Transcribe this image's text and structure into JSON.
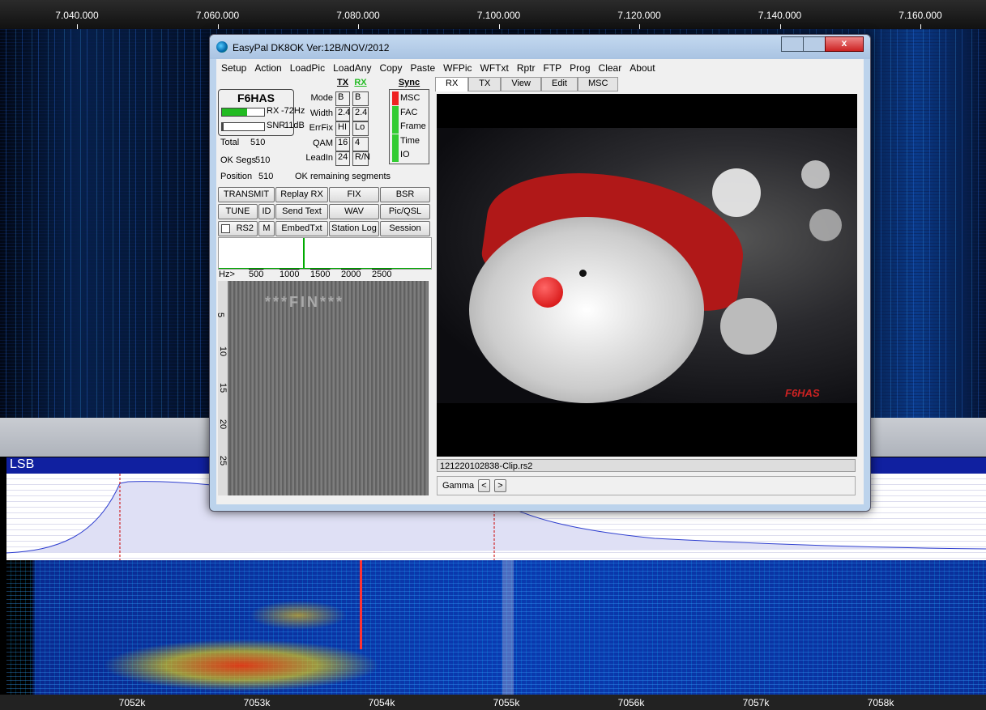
{
  "top_scale": [
    "7.040.000",
    "7.060.000",
    "7.080.000",
    "7.100.000",
    "7.120.000",
    "7.140.000",
    "7.160.000"
  ],
  "window": {
    "title": "EasyPal  DK8OK  Ver:12B/NOV/2012",
    "menu": [
      "Setup",
      "Action",
      "LoadPic",
      "LoadAny",
      "Copy",
      "Paste",
      "WFPic",
      "WFTxt",
      "Rptr",
      "FTP",
      "Prog",
      "Clear",
      "About"
    ],
    "status": {
      "callsign": "F6HAS",
      "rx": "RX",
      "rx_offset": "-72Hz",
      "snr_label": "SNR",
      "snr": "11dB",
      "total_label": "Total",
      "total": "510",
      "ok_segs_label": "OK Segs",
      "ok_segs": "510",
      "position_label": "Position",
      "position": "510",
      "remaining": "OK remaining segments"
    },
    "params": {
      "headers": [
        "TX",
        "RX",
        "Sync"
      ],
      "rows": [
        [
          "Mode",
          "B",
          "B"
        ],
        [
          "Width",
          "2.4",
          "2.4"
        ],
        [
          "ErrFix",
          "HI",
          "Lo"
        ],
        [
          "QAM",
          "16",
          "4"
        ],
        [
          "LeadIn",
          "24",
          "R/N"
        ]
      ],
      "sync": [
        "MSC",
        "FAC",
        "Frame",
        "Time",
        "IO"
      ]
    },
    "buttons": [
      [
        "TRANSMIT",
        "Replay RX",
        "FIX",
        "BSR"
      ],
      [
        "TUNE",
        "ID",
        "Send Text",
        "WAV",
        "Pic/QSL"
      ],
      [
        "RS2",
        "M",
        "EmbedTxt",
        "Station Log",
        "Session"
      ]
    ],
    "spectrum_axis": [
      "Hz>",
      "500",
      "1000",
      "1500",
      "2000",
      "2500"
    ],
    "waterfall_ruler": [
      "5",
      "10",
      "15",
      "20",
      "25"
    ],
    "waterfall_text": "***FIN***",
    "tabs": [
      "RX",
      "TX",
      "View",
      "Edit",
      "MSC"
    ],
    "picture_caption": "F6HAS",
    "file": "121220102838-Clip.rs2",
    "gamma": [
      "Gamma",
      "<",
      ">"
    ]
  },
  "lower_panel": {
    "mode": "LSB",
    "scale": [
      "7052k",
      "7053k",
      "7054k",
      "7055k",
      "7056k",
      "7057k",
      "7058k"
    ]
  }
}
